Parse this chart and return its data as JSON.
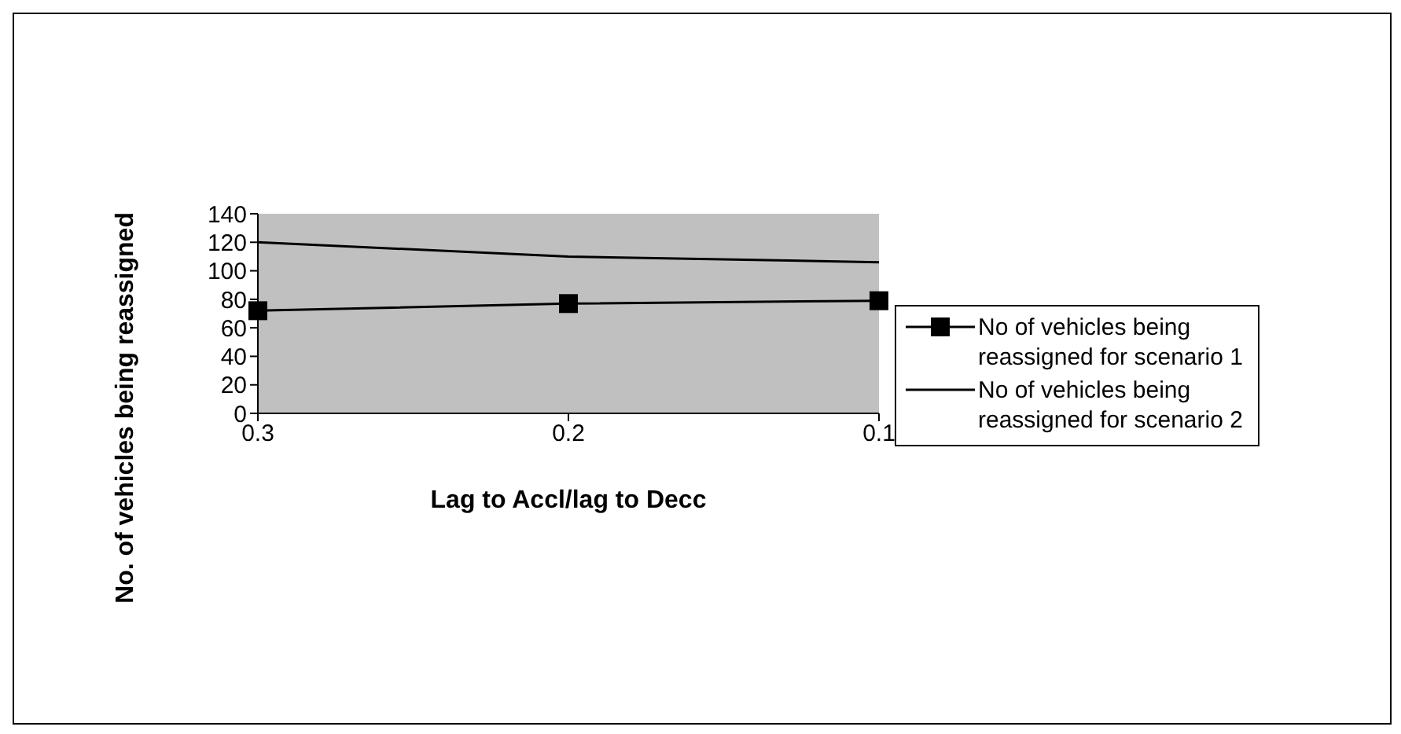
{
  "chart_data": {
    "type": "line",
    "xlabel": "Lag to Accl/lag to Decc",
    "ylabel": "No. of vehicles being reassigned",
    "categories": [
      "0.3",
      "0.2",
      "0.1"
    ],
    "series": [
      {
        "name": "No of vehicles being reassigned for scenario 1",
        "color": "#000000",
        "values": [
          72,
          77,
          79
        ],
        "marker": "square"
      },
      {
        "name": "No of vehicles being reassigned for scenario 2",
        "color": "#000000",
        "values": [
          120,
          110,
          106
        ],
        "marker": "none"
      }
    ],
    "ylim": [
      0,
      140
    ],
    "yticks": [
      0,
      20,
      40,
      60,
      80,
      100,
      120,
      140
    ],
    "legend": "right"
  }
}
